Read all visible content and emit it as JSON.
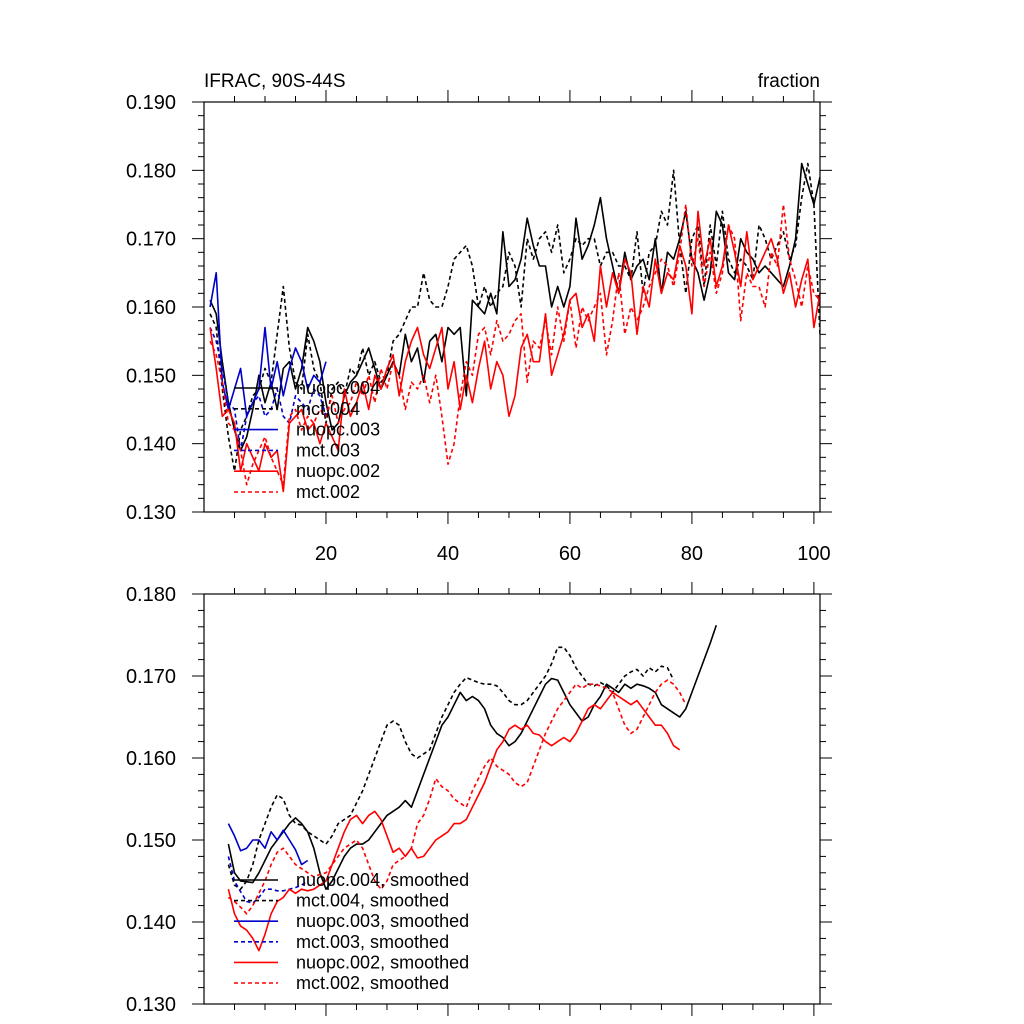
{
  "chart_data": [
    {
      "type": "line",
      "title": "IFRAC, 90S-44S",
      "units": "fraction",
      "xlim": [
        0,
        101
      ],
      "ylim": [
        0.13,
        0.19
      ],
      "x_ticks": [
        20,
        40,
        60,
        80,
        100
      ],
      "x_tick_labels": [
        "20",
        "40",
        "60",
        "80",
        "100"
      ],
      "y_ticks": [
        0.13,
        0.14,
        0.15,
        0.16,
        0.17,
        0.18,
        0.19
      ],
      "y_tick_labels": [
        "0.130",
        "0.140",
        "0.150",
        "0.160",
        "0.170",
        "0.180",
        "0.190"
      ],
      "legend_entries": [
        {
          "label": "nuopc.004",
          "color": "#000000",
          "dash": "solid"
        },
        {
          "label": "mct.004",
          "color": "#000000",
          "dash": "dashed"
        },
        {
          "label": "nuopc.003",
          "color": "#0000cc",
          "dash": "solid"
        },
        {
          "label": "mct.003",
          "color": "#0000cc",
          "dash": "dashed"
        },
        {
          "label": "nuopc.002",
          "color": "#ff0000",
          "dash": "solid"
        },
        {
          "label": "mct.002",
          "color": "#ff0000",
          "dash": "dashed"
        }
      ],
      "series": [
        {
          "name": "nuopc.004",
          "color": "#000000",
          "dash": "solid",
          "x_start": 1,
          "values": [
            0.161,
            0.159,
            0.152,
            0.146,
            0.142,
            0.139,
            0.141,
            0.145,
            0.15,
            0.146,
            0.149,
            0.145,
            0.151,
            0.152,
            0.148,
            0.151,
            0.157,
            0.155,
            0.152,
            0.146,
            0.142,
            0.143,
            0.147,
            0.149,
            0.15,
            0.152,
            0.154,
            0.151,
            0.148,
            0.15,
            0.152,
            0.15,
            0.156,
            0.152,
            0.154,
            0.149,
            0.155,
            0.156,
            0.152,
            0.157,
            0.156,
            0.157,
            0.147,
            0.161,
            0.16,
            0.159,
            0.162,
            0.159,
            0.171,
            0.163,
            0.164,
            0.167,
            0.173,
            0.169,
            0.166,
            0.166,
            0.16,
            0.163,
            0.16,
            0.163,
            0.173,
            0.167,
            0.169,
            0.172,
            0.176,
            0.17,
            0.166,
            0.162,
            0.168,
            0.164,
            0.166,
            0.167,
            0.164,
            0.17,
            0.162,
            0.168,
            0.167,
            0.17,
            0.174,
            0.167,
            0.165,
            0.161,
            0.165,
            0.174,
            0.172,
            0.165,
            0.164,
            0.17,
            0.168,
            0.167,
            0.165,
            0.166,
            0.165,
            0.164,
            0.163,
            0.166,
            0.17,
            0.181,
            0.178,
            0.175,
            0.179
          ]
        },
        {
          "name": "mct.004",
          "color": "#000000",
          "dash": "dashed",
          "x_start": 1,
          "values": [
            0.159,
            0.157,
            0.148,
            0.141,
            0.136,
            0.142,
            0.144,
            0.147,
            0.148,
            0.151,
            0.149,
            0.156,
            0.163,
            0.154,
            0.149,
            0.148,
            0.156,
            0.151,
            0.149,
            0.143,
            0.148,
            0.149,
            0.147,
            0.151,
            0.15,
            0.154,
            0.15,
            0.152,
            0.149,
            0.15,
            0.155,
            0.156,
            0.158,
            0.16,
            0.16,
            0.165,
            0.161,
            0.16,
            0.16,
            0.163,
            0.167,
            0.168,
            0.169,
            0.166,
            0.16,
            0.163,
            0.16,
            0.162,
            0.163,
            0.168,
            0.166,
            0.16,
            0.17,
            0.167,
            0.17,
            0.171,
            0.168,
            0.172,
            0.165,
            0.167,
            0.17,
            0.169,
            0.17,
            0.17,
            0.166,
            0.168,
            0.168,
            0.166,
            0.166,
            0.164,
            0.171,
            0.162,
            0.168,
            0.169,
            0.174,
            0.172,
            0.18,
            0.169,
            0.162,
            0.17,
            0.172,
            0.163,
            0.172,
            0.166,
            0.174,
            0.167,
            0.165,
            0.167,
            0.166,
            0.164,
            0.172,
            0.17,
            0.167,
            0.169,
            0.171,
            0.167,
            0.169,
            0.176,
            0.181,
            0.175,
            0.156
          ]
        },
        {
          "name": "nuopc.003",
          "color": "#0000cc",
          "dash": "solid",
          "x_start": 1,
          "values": [
            0.16,
            0.165,
            0.149,
            0.145,
            0.148,
            0.151,
            0.144,
            0.146,
            0.148,
            0.157,
            0.148,
            0.152,
            0.147,
            0.151,
            0.154,
            0.152,
            0.148,
            0.15,
            0.149,
            0.152
          ]
        },
        {
          "name": "mct.003",
          "color": "#0000cc",
          "dash": "dashed",
          "x_start": 1,
          "values": [
            0.157,
            0.155,
            0.151,
            0.146,
            0.145,
            0.139,
            0.144,
            0.146,
            0.147,
            0.144,
            0.145,
            0.148,
            0.144,
            0.143,
            0.147,
            0.146,
            0.145,
            0.148,
            0.147,
            0.144
          ]
        },
        {
          "name": "nuopc.002",
          "color": "#ff0000",
          "dash": "solid",
          "x_start": 1,
          "values": [
            0.157,
            0.151,
            0.144,
            0.145,
            0.143,
            0.136,
            0.14,
            0.138,
            0.136,
            0.14,
            0.138,
            0.139,
            0.133,
            0.143,
            0.144,
            0.145,
            0.142,
            0.143,
            0.14,
            0.143,
            0.141,
            0.139,
            0.148,
            0.144,
            0.146,
            0.149,
            0.145,
            0.15,
            0.148,
            0.151,
            0.153,
            0.147,
            0.152,
            0.155,
            0.157,
            0.153,
            0.151,
            0.154,
            0.157,
            0.148,
            0.152,
            0.145,
            0.15,
            0.146,
            0.151,
            0.155,
            0.148,
            0.152,
            0.15,
            0.144,
            0.147,
            0.154,
            0.156,
            0.152,
            0.152,
            0.159,
            0.15,
            0.153,
            0.156,
            0.161,
            0.162,
            0.157,
            0.159,
            0.155,
            0.166,
            0.16,
            0.165,
            0.162,
            0.167,
            0.165,
            0.156,
            0.163,
            0.16,
            0.167,
            0.162,
            0.165,
            0.164,
            0.169,
            0.166,
            0.159,
            0.174,
            0.166,
            0.17,
            0.163,
            0.166,
            0.172,
            0.168,
            0.163,
            0.171,
            0.164,
            0.166,
            0.168,
            0.17,
            0.167,
            0.162,
            0.165,
            0.16,
            0.164,
            0.167,
            0.157,
            0.162
          ]
        },
        {
          "name": "mct.002",
          "color": "#ff0000",
          "dash": "dashed",
          "x_start": 1,
          "values": [
            0.155,
            0.153,
            0.149,
            0.143,
            0.142,
            0.139,
            0.134,
            0.137,
            0.139,
            0.141,
            0.138,
            0.136,
            0.134,
            0.144,
            0.145,
            0.142,
            0.144,
            0.143,
            0.145,
            0.144,
            0.147,
            0.143,
            0.145,
            0.146,
            0.149,
            0.147,
            0.15,
            0.146,
            0.151,
            0.148,
            0.152,
            0.15,
            0.145,
            0.149,
            0.148,
            0.15,
            0.146,
            0.15,
            0.144,
            0.137,
            0.14,
            0.147,
            0.152,
            0.15,
            0.156,
            0.157,
            0.153,
            0.158,
            0.155,
            0.156,
            0.158,
            0.159,
            0.149,
            0.155,
            0.154,
            0.158,
            0.153,
            0.16,
            0.155,
            0.161,
            0.154,
            0.16,
            0.158,
            0.16,
            0.162,
            0.153,
            0.158,
            0.165,
            0.156,
            0.16,
            0.158,
            0.16,
            0.163,
            0.165,
            0.167,
            0.166,
            0.163,
            0.168,
            0.175,
            0.166,
            0.17,
            0.163,
            0.168,
            0.162,
            0.165,
            0.172,
            0.17,
            0.158,
            0.165,
            0.163,
            0.163,
            0.16,
            0.168,
            0.166,
            0.175,
            0.167,
            0.164,
            0.16,
            0.166,
            0.162,
            0.161
          ]
        }
      ]
    },
    {
      "type": "line",
      "title": "",
      "xlim": [
        0,
        101
      ],
      "ylim": [
        0.13,
        0.18
      ],
      "x_ticks": [
        20,
        40,
        60,
        80,
        100
      ],
      "x_tick_labels": [],
      "y_ticks": [
        0.13,
        0.14,
        0.15,
        0.16,
        0.17,
        0.18
      ],
      "y_tick_labels": [
        "0.130",
        "0.140",
        "0.150",
        "0.160",
        "0.170",
        "0.180"
      ],
      "legend_entries": [
        {
          "label": "nuopc.004, smoothed",
          "color": "#000000",
          "dash": "solid"
        },
        {
          "label": "mct.004, smoothed",
          "color": "#000000",
          "dash": "dashed"
        },
        {
          "label": "nuopc.003, smoothed",
          "color": "#0000cc",
          "dash": "solid"
        },
        {
          "label": "mct.003, smoothed",
          "color": "#0000cc",
          "dash": "dashed"
        },
        {
          "label": "nuopc.002, smoothed",
          "color": "#ff0000",
          "dash": "solid"
        },
        {
          "label": "mct.002, smoothed",
          "color": "#ff0000",
          "dash": "dashed"
        }
      ],
      "series": [
        {
          "name": "nuopc.004, smoothed",
          "color": "#000000",
          "dash": "solid",
          "x_start": 4,
          "values": [
            0.1495,
            0.146,
            0.145,
            0.1449,
            0.1448,
            0.146,
            0.1475,
            0.149,
            0.15,
            0.151,
            0.152,
            0.1527,
            0.152,
            0.151,
            0.149,
            0.146,
            0.144,
            0.145,
            0.1465,
            0.148,
            0.149,
            0.1495,
            0.1495,
            0.15,
            0.151,
            0.152,
            0.153,
            0.1535,
            0.154,
            0.1548,
            0.154,
            0.156,
            0.158,
            0.16,
            0.162,
            0.164,
            0.165,
            0.1665,
            0.168,
            0.167,
            0.1675,
            0.167,
            0.166,
            0.164,
            0.163,
            0.1625,
            0.1615,
            0.162,
            0.163,
            0.1645,
            0.166,
            0.1675,
            0.169,
            0.1697,
            0.1695,
            0.168,
            0.1665,
            0.1655,
            0.1645,
            0.165,
            0.1665,
            0.1675,
            0.169,
            0.1685,
            0.168,
            0.169,
            0.1685,
            0.169,
            0.1688,
            0.1685,
            0.168,
            0.1665,
            0.166,
            0.1655,
            0.165,
            0.166,
            0.168,
            0.17,
            0.172,
            0.174,
            0.1762
          ]
        },
        {
          "name": "mct.004, smoothed",
          "color": "#000000",
          "dash": "dashed",
          "x_start": 4,
          "values": [
            0.147,
            0.1445,
            0.144,
            0.145,
            0.147,
            0.15,
            0.152,
            0.154,
            0.1555,
            0.155,
            0.153,
            0.152,
            0.1518,
            0.151,
            0.1505,
            0.15,
            0.1495,
            0.1505,
            0.152,
            0.1525,
            0.153,
            0.1545,
            0.156,
            0.158,
            0.16,
            0.162,
            0.164,
            0.1645,
            0.164,
            0.162,
            0.1605,
            0.16,
            0.1605,
            0.161,
            0.163,
            0.165,
            0.1665,
            0.168,
            0.169,
            0.1698,
            0.1695,
            0.1692,
            0.169,
            0.169,
            0.1688,
            0.168,
            0.167,
            0.1665,
            0.1665,
            0.167,
            0.168,
            0.169,
            0.17,
            0.1715,
            0.1735,
            0.1735,
            0.1725,
            0.171,
            0.17,
            0.169,
            0.1688,
            0.1692,
            0.1688,
            0.168,
            0.169,
            0.17,
            0.1705,
            0.1708,
            0.17,
            0.171,
            0.1705,
            0.1712,
            0.171,
            0.1695
          ]
        },
        {
          "name": "nuopc.003, smoothed",
          "color": "#0000cc",
          "dash": "solid",
          "x_start": 4,
          "values": [
            0.152,
            0.1505,
            0.1487,
            0.149,
            0.15,
            0.15,
            0.149,
            0.151,
            0.15,
            0.1512,
            0.15,
            0.1488,
            0.147,
            0.1475
          ]
        },
        {
          "name": "mct.003, smoothed",
          "color": "#0000cc",
          "dash": "dashed",
          "x_start": 4,
          "values": [
            0.148,
            0.145,
            0.1437,
            0.1425,
            0.1423,
            0.143,
            0.144,
            0.144,
            0.1438,
            0.1438,
            0.144,
            0.1442,
            0.1445,
            0.145
          ]
        },
        {
          "name": "nuopc.002, smoothed",
          "color": "#ff0000",
          "dash": "solid",
          "x_start": 4,
          "values": [
            0.144,
            0.141,
            0.1395,
            0.139,
            0.138,
            0.1365,
            0.1385,
            0.141,
            0.1425,
            0.143,
            0.144,
            0.1435,
            0.144,
            0.1438,
            0.144,
            0.1445,
            0.145,
            0.147,
            0.149,
            0.151,
            0.1525,
            0.153,
            0.152,
            0.153,
            0.1535,
            0.1525,
            0.1505,
            0.1485,
            0.149,
            0.148,
            0.149,
            0.1478,
            0.148,
            0.149,
            0.15,
            0.1505,
            0.151,
            0.152,
            0.152,
            0.1525,
            0.154,
            0.1555,
            0.157,
            0.159,
            0.161,
            0.162,
            0.1635,
            0.164,
            0.1635,
            0.164,
            0.163,
            0.1628,
            0.162,
            0.1615,
            0.162,
            0.1625,
            0.162,
            0.163,
            0.1645,
            0.166,
            0.1665,
            0.166,
            0.167,
            0.168,
            0.1675,
            0.167,
            0.1665,
            0.167,
            0.166,
            0.165,
            0.164,
            0.164,
            0.163,
            0.1615,
            0.161
          ]
        },
        {
          "name": "mct.002, smoothed",
          "color": "#ff0000",
          "dash": "dashed",
          "x_start": 4,
          "values": [
            0.143,
            0.1425,
            0.1418,
            0.141,
            0.142,
            0.1435,
            0.145,
            0.147,
            0.1485,
            0.149,
            0.148,
            0.147,
            0.1465,
            0.146,
            0.1455,
            0.1458,
            0.146,
            0.147,
            0.148,
            0.149,
            0.1495,
            0.15,
            0.149,
            0.147,
            0.145,
            0.144,
            0.145,
            0.147,
            0.1475,
            0.148,
            0.149,
            0.152,
            0.153,
            0.155,
            0.1575,
            0.1565,
            0.156,
            0.155,
            0.1545,
            0.154,
            0.156,
            0.1575,
            0.159,
            0.16,
            0.159,
            0.1585,
            0.158,
            0.157,
            0.1565,
            0.157,
            0.159,
            0.161,
            0.163,
            0.1645,
            0.166,
            0.167,
            0.168,
            0.169,
            0.1685,
            0.169,
            0.169,
            0.1688,
            0.1685,
            0.168,
            0.166,
            0.164,
            0.163,
            0.1635,
            0.165,
            0.1665,
            0.168,
            0.169,
            0.1695,
            0.169,
            0.168,
            0.1665
          ]
        }
      ]
    }
  ]
}
